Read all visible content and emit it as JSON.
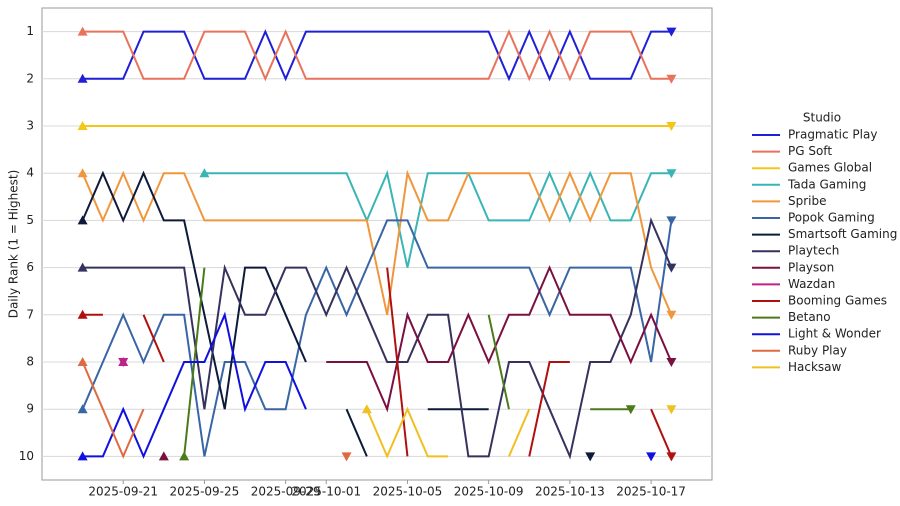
{
  "chart_data": {
    "type": "line",
    "y_label": "Daily Rank (1 = Highest)",
    "legend_title": "Studio",
    "legend": "right",
    "grid": true,
    "inverted_y": true,
    "x": [
      "2025-09-19",
      "2025-09-20",
      "2025-09-21",
      "2025-09-22",
      "2025-09-23",
      "2025-09-24",
      "2025-09-25",
      "2025-09-26",
      "2025-09-27",
      "2025-09-28",
      "2025-09-29",
      "2025-09-30",
      "2025-10-01",
      "2025-10-02",
      "2025-10-03",
      "2025-10-04",
      "2025-10-05",
      "2025-10-06",
      "2025-10-07",
      "2025-10-08",
      "2025-10-09",
      "2025-10-10",
      "2025-10-11",
      "2025-10-12",
      "2025-10-13",
      "2025-10-14",
      "2025-10-15",
      "2025-10-16",
      "2025-10-17",
      "2025-10-18"
    ],
    "xlim": [
      "2025-09-17",
      "2025-10-20"
    ],
    "xticks": [
      "2025-09-21",
      "2025-09-25",
      "2025-09-29",
      "2025-10-01",
      "2025-10-05",
      "2025-10-09",
      "2025-10-13",
      "2025-10-17"
    ],
    "ylim": [
      0.5,
      10.5
    ],
    "yticks": [
      1,
      2,
      3,
      4,
      5,
      6,
      7,
      8,
      9,
      10
    ],
    "series": [
      {
        "name": "Pragmatic Play",
        "color": "#1f1fd8",
        "values": [
          2,
          2,
          2,
          1,
          1,
          1,
          2,
          2,
          2,
          1,
          2,
          1,
          1,
          1,
          1,
          1,
          1,
          1,
          1,
          1,
          1,
          2,
          1,
          2,
          1,
          2,
          2,
          2,
          1,
          1
        ]
      },
      {
        "name": "PG Soft",
        "color": "#e8735a",
        "values": [
          1,
          1,
          1,
          2,
          2,
          2,
          1,
          1,
          1,
          2,
          1,
          2,
          2,
          2,
          2,
          2,
          2,
          2,
          2,
          2,
          2,
          1,
          2,
          1,
          2,
          1,
          1,
          1,
          2,
          2
        ]
      },
      {
        "name": "Games Global",
        "color": "#f5c518",
        "values": [
          3,
          3,
          3,
          3,
          3,
          3,
          3,
          3,
          3,
          3,
          3,
          3,
          3,
          3,
          3,
          3,
          3,
          3,
          3,
          3,
          3,
          3,
          3,
          3,
          3,
          3,
          3,
          3,
          3,
          3
        ]
      },
      {
        "name": "Tada Gaming",
        "color": "#3ab5b5",
        "values": [
          null,
          null,
          null,
          null,
          null,
          null,
          4,
          4,
          4,
          4,
          4,
          4,
          4,
          4,
          5,
          4,
          6,
          4,
          4,
          4,
          5,
          5,
          5,
          4,
          5,
          4,
          5,
          5,
          4,
          4
        ]
      },
      {
        "name": "Spribe",
        "color": "#f0963c",
        "values": [
          4,
          5,
          4,
          5,
          4,
          4,
          5,
          5,
          5,
          5,
          5,
          5,
          5,
          5,
          5,
          7,
          4,
          5,
          5,
          4,
          4,
          4,
          4,
          5,
          4,
          5,
          4,
          4,
          6,
          7
        ]
      },
      {
        "name": "Popok Gaming",
        "color": "#3a65a5",
        "values": [
          9,
          8,
          7,
          8,
          7,
          7,
          10,
          8,
          8,
          9,
          9,
          7,
          6,
          7,
          6,
          5,
          5,
          6,
          6,
          6,
          6,
          6,
          6,
          7,
          6,
          6,
          6,
          6,
          8,
          5
        ]
      },
      {
        "name": "Smartsoft Gaming",
        "color": "#0d1a3a",
        "values": [
          5,
          4,
          5,
          4,
          5,
          5,
          7,
          9,
          6,
          6,
          7,
          8,
          null,
          9,
          10,
          null,
          null,
          9,
          9,
          9,
          9,
          null,
          null,
          null,
          null,
          10,
          null,
          null,
          null,
          null
        ]
      },
      {
        "name": "Playtech",
        "color": "#35325e",
        "values": [
          6,
          6,
          6,
          6,
          6,
          6,
          9,
          6,
          7,
          7,
          6,
          6,
          7,
          6,
          7,
          8,
          8,
          7,
          7,
          10,
          10,
          8,
          8,
          9,
          10,
          8,
          8,
          7,
          5,
          6
        ]
      },
      {
        "name": "Playson",
        "color": "#7a1040",
        "values": [
          null,
          null,
          null,
          null,
          10,
          null,
          null,
          null,
          null,
          null,
          null,
          null,
          8,
          8,
          8,
          9,
          7,
          8,
          8,
          7,
          8,
          7,
          7,
          6,
          7,
          7,
          7,
          8,
          7,
          8
        ]
      },
      {
        "name": "Wazdan",
        "color": "#c0208a",
        "values": [
          null,
          null,
          8,
          null,
          null,
          null,
          null,
          null,
          null,
          null,
          null,
          null,
          null,
          null,
          null,
          null,
          null,
          null,
          null,
          null,
          null,
          null,
          null,
          null,
          null,
          null,
          null,
          null,
          null,
          null
        ]
      },
      {
        "name": "Booming Games",
        "color": "#b01010",
        "values": [
          7,
          7,
          null,
          7,
          8,
          null,
          null,
          null,
          null,
          null,
          null,
          null,
          null,
          null,
          null,
          6,
          10,
          null,
          null,
          null,
          null,
          null,
          10,
          8,
          8,
          null,
          null,
          null,
          9,
          10
        ]
      },
      {
        "name": "Betano",
        "color": "#4a7a1a",
        "values": [
          null,
          null,
          null,
          null,
          null,
          10,
          6,
          null,
          null,
          null,
          null,
          null,
          null,
          null,
          null,
          null,
          null,
          null,
          null,
          null,
          7,
          9,
          null,
          null,
          null,
          9,
          9,
          9,
          null,
          null
        ]
      },
      {
        "name": "Light & Wonder",
        "color": "#1010e0",
        "values": [
          10,
          10,
          9,
          10,
          9,
          8,
          8,
          7,
          9,
          8,
          8,
          9,
          null,
          null,
          null,
          null,
          null,
          null,
          null,
          null,
          null,
          null,
          null,
          null,
          null,
          null,
          null,
          null,
          10,
          null
        ]
      },
      {
        "name": "Ruby Play",
        "color": "#e06a40",
        "values": [
          8,
          9,
          10,
          9,
          null,
          null,
          null,
          null,
          null,
          null,
          null,
          null,
          null,
          10,
          null,
          null,
          null,
          null,
          null,
          null,
          null,
          null,
          null,
          null,
          null,
          null,
          null,
          null,
          null,
          null
        ]
      },
      {
        "name": "Hacksaw",
        "color": "#f0c020",
        "values": [
          null,
          null,
          null,
          null,
          null,
          null,
          null,
          null,
          null,
          null,
          null,
          null,
          null,
          null,
          9,
          10,
          9,
          10,
          10,
          null,
          null,
          10,
          9,
          null,
          null,
          null,
          null,
          null,
          null,
          9
        ]
      }
    ]
  }
}
